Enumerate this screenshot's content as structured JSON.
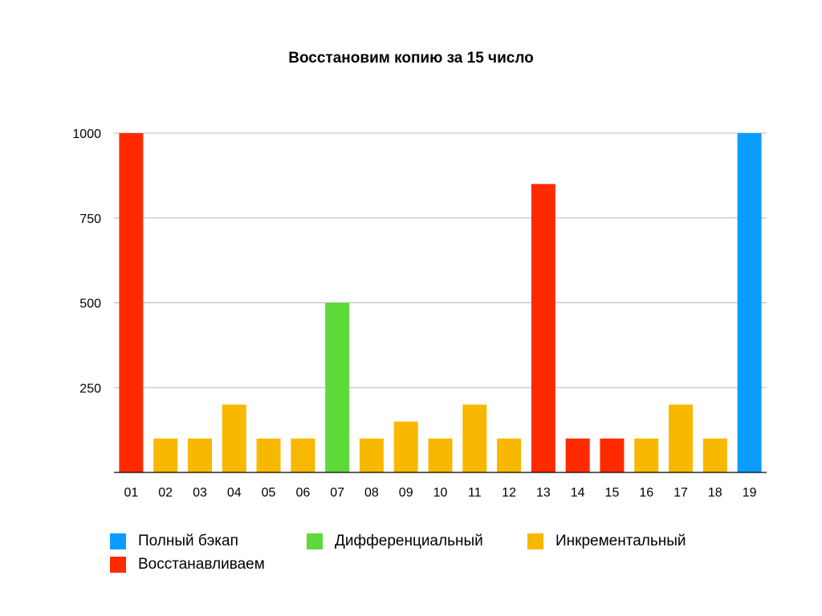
{
  "chart_data": {
    "type": "bar",
    "title": "Восстановим копию за 15 число",
    "xlabel": "",
    "ylabel": "",
    "ylim": [
      0,
      1000
    ],
    "yticks": [
      250,
      500,
      750,
      1000
    ],
    "grid": true,
    "legend_position": "bottom",
    "categories": [
      "01",
      "02",
      "03",
      "04",
      "05",
      "06",
      "07",
      "08",
      "09",
      "10",
      "11",
      "12",
      "13",
      "14",
      "15",
      "16",
      "17",
      "18",
      "19"
    ],
    "values": [
      1000,
      100,
      100,
      200,
      100,
      100,
      500,
      100,
      150,
      100,
      200,
      100,
      850,
      100,
      100,
      100,
      200,
      100,
      1000
    ],
    "bar_types": [
      "restore",
      "incremental",
      "incremental",
      "incremental",
      "incremental",
      "incremental",
      "differential",
      "incremental",
      "incremental",
      "incremental",
      "incremental",
      "incremental",
      "restore",
      "restore",
      "restore",
      "incremental",
      "incremental",
      "incremental",
      "full"
    ],
    "series": [
      {
        "key": "full",
        "name": "Полный бэкап",
        "color": "#0A9DFF"
      },
      {
        "key": "differential",
        "name": "Дифференциальный",
        "color": "#5DD93A"
      },
      {
        "key": "incremental",
        "name": "Инкрементальный",
        "color": "#F8B800"
      },
      {
        "key": "restore",
        "name": "Восстанавливаем",
        "color": "#FF2A00"
      }
    ]
  }
}
